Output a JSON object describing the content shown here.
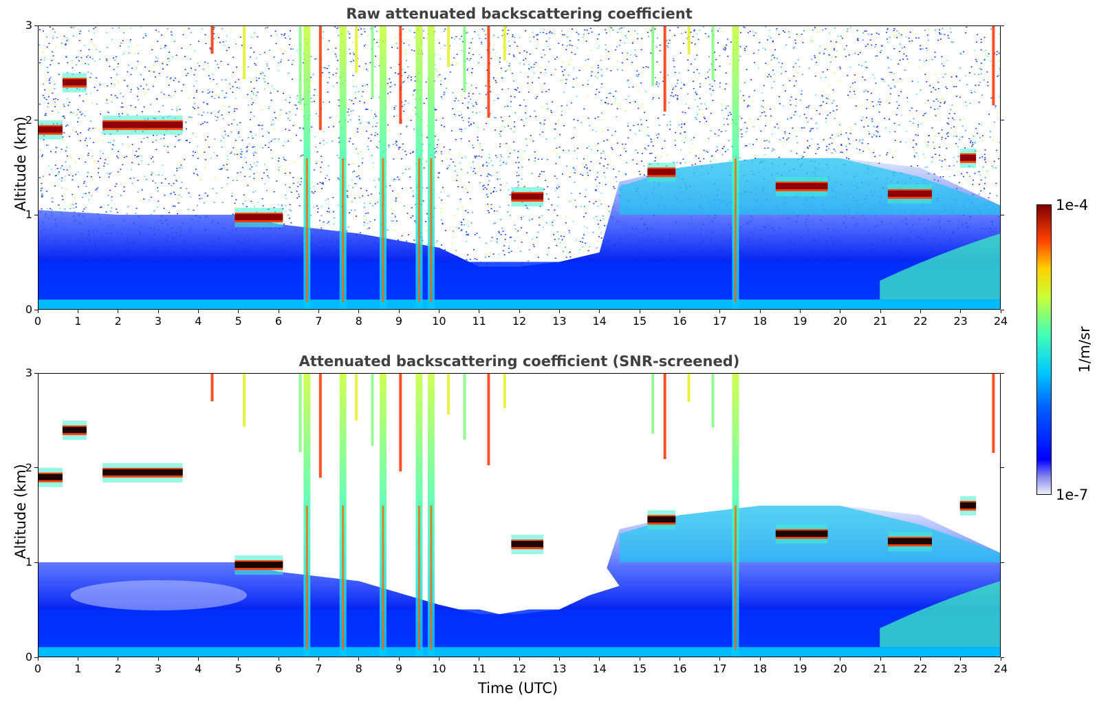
{
  "panels": [
    {
      "title": "Raw attenuated backscattering coefficient",
      "ylabel": "Altitude (km)",
      "xlabel": ""
    },
    {
      "title": "Attenuated backscattering coefficient (SNR-screened)",
      "ylabel": "Altitude (km)",
      "xlabel": "Time (UTC)"
    }
  ],
  "colorbar": {
    "max_label": "1e-4",
    "min_label": "1e-7",
    "unit": "1/m/sr",
    "colormap": "jet",
    "scale": "log"
  },
  "chart_data": [
    {
      "type": "heatmap",
      "title": "Raw attenuated backscattering coefficient",
      "xlabel": "",
      "ylabel": "Altitude (km)",
      "xlim": [
        0,
        24
      ],
      "ylim": [
        0,
        3
      ],
      "xticks": [
        0,
        1,
        2,
        3,
        4,
        5,
        6,
        7,
        8,
        9,
        10,
        11,
        12,
        13,
        14,
        15,
        16,
        17,
        18,
        19,
        20,
        21,
        22,
        23,
        24
      ],
      "yticks": [
        0,
        1,
        2,
        3
      ],
      "clim": [
        1e-07,
        0.0001
      ],
      "cloud_layers": [
        {
          "t_start": 0.0,
          "t_end": 0.6,
          "alt_km": 1.9
        },
        {
          "t_start": 0.6,
          "t_end": 1.2,
          "alt_km": 2.4
        },
        {
          "t_start": 1.6,
          "t_end": 3.6,
          "alt_km": 1.95
        },
        {
          "t_start": 4.9,
          "t_end": 6.1,
          "alt_km": 0.97
        },
        {
          "t_start": 11.8,
          "t_end": 12.6,
          "alt_km": 1.19
        },
        {
          "t_start": 15.2,
          "t_end": 15.9,
          "alt_km": 1.45
        },
        {
          "t_start": 18.4,
          "t_end": 19.7,
          "alt_km": 1.3
        },
        {
          "t_start": 21.2,
          "t_end": 22.3,
          "alt_km": 1.22
        },
        {
          "t_start": 23.0,
          "t_end": 23.4,
          "alt_km": 1.6
        }
      ],
      "precip_columns_t": [
        6.7,
        7.6,
        8.6,
        9.5,
        9.8,
        17.4
      ]
    },
    {
      "type": "heatmap",
      "title": "Attenuated backscattering coefficient (SNR-screened)",
      "xlabel": "Time (UTC)",
      "ylabel": "Altitude (km)",
      "xlim": [
        0,
        24
      ],
      "ylim": [
        0,
        3
      ],
      "xticks": [
        0,
        1,
        2,
        3,
        4,
        5,
        6,
        7,
        8,
        9,
        10,
        11,
        12,
        13,
        14,
        15,
        16,
        17,
        18,
        19,
        20,
        21,
        22,
        23,
        24
      ],
      "yticks": [
        0,
        1,
        2,
        3
      ],
      "clim": [
        1e-07,
        0.0001
      ]
    }
  ]
}
